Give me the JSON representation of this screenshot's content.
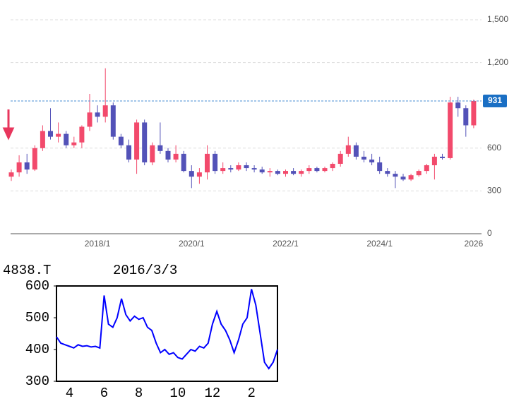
{
  "chart_data": [
    {
      "type": "candlestick",
      "categories": [
        null,
        null,
        null,
        null,
        null,
        null,
        null,
        null,
        null,
        null,
        null,
        "2018/1",
        null,
        null,
        null,
        null,
        null,
        null,
        null,
        null,
        null,
        null,
        null,
        "2020/1",
        null,
        null,
        null,
        null,
        null,
        null,
        null,
        null,
        null,
        null,
        null,
        "2022/1",
        null,
        null,
        null,
        null,
        null,
        null,
        null,
        null,
        null,
        null,
        null,
        "2024/1",
        null,
        null,
        null,
        null,
        null,
        null,
        null,
        null,
        null,
        null,
        null,
        "2026"
      ],
      "open": [
        400,
        430,
        500,
        450,
        600,
        720,
        680,
        700,
        620,
        640,
        750,
        850,
        820,
        900,
        680,
        620,
        520,
        780,
        500,
        620,
        580,
        520,
        560,
        440,
        400,
        430,
        560,
        440,
        460,
        450,
        480,
        460,
        450,
        430,
        440,
        420,
        440,
        420,
        440,
        460,
        440,
        460,
        490,
        560,
        620,
        540,
        520,
        500,
        440,
        420,
        400,
        380,
        410,
        440,
        480,
        540,
        530,
        920,
        880,
        760
      ],
      "high": [
        450,
        550,
        560,
        620,
        760,
        880,
        780,
        720,
        680,
        760,
        980,
        900,
        1160,
        920,
        700,
        660,
        800,
        800,
        640,
        780,
        600,
        620,
        580,
        480,
        460,
        620,
        580,
        500,
        480,
        500,
        500,
        480,
        470,
        460,
        450,
        450,
        460,
        450,
        480,
        470,
        470,
        500,
        580,
        680,
        640,
        580,
        560,
        540,
        460,
        440,
        420,
        420,
        450,
        490,
        560,
        560,
        960,
        960,
        900,
        940
      ],
      "low": [
        370,
        400,
        420,
        440,
        580,
        660,
        640,
        600,
        600,
        600,
        720,
        780,
        780,
        660,
        600,
        500,
        420,
        480,
        480,
        560,
        500,
        500,
        430,
        320,
        350,
        380,
        420,
        420,
        430,
        440,
        440,
        430,
        420,
        400,
        410,
        400,
        410,
        400,
        420,
        430,
        430,
        440,
        470,
        540,
        520,
        500,
        480,
        420,
        400,
        320,
        370,
        370,
        400,
        420,
        380,
        520,
        520,
        820,
        680,
        740
      ],
      "close": [
        430,
        500,
        450,
        600,
        720,
        680,
        700,
        620,
        640,
        750,
        850,
        820,
        900,
        680,
        620,
        520,
        780,
        500,
        620,
        580,
        520,
        560,
        440,
        400,
        430,
        560,
        440,
        460,
        450,
        480,
        460,
        450,
        430,
        440,
        420,
        440,
        420,
        440,
        460,
        440,
        460,
        490,
        560,
        620,
        540,
        520,
        500,
        440,
        420,
        400,
        380,
        410,
        440,
        480,
        540,
        530,
        920,
        880,
        760,
        931
      ],
      "up_color": "#f24a6c",
      "down_color": "#5352b8",
      "ylim": [
        0,
        1500
      ],
      "yticks": [
        0,
        300,
        600,
        {
          "value": 1200,
          "label": "1,200"
        },
        {
          "value": 1500,
          "label": "1,500"
        }
      ],
      "grid": true
    },
    {
      "type": "line",
      "title": "4838.T",
      "subtitle": "2016/3/3",
      "categories": [
        null,
        null,
        null,
        "4",
        null,
        null,
        null,
        null,
        null,
        null,
        null,
        "6",
        null,
        null,
        null,
        null,
        null,
        null,
        null,
        "8",
        null,
        null,
        null,
        null,
        null,
        null,
        null,
        null,
        "10",
        null,
        null,
        null,
        null,
        null,
        null,
        null,
        "12",
        null,
        null,
        null,
        null,
        null,
        null,
        null,
        null,
        "2",
        null,
        null,
        null,
        null,
        null,
        null
      ],
      "values": [
        440,
        420,
        415,
        410,
        405,
        415,
        410,
        412,
        408,
        410,
        405,
        570,
        480,
        470,
        500,
        560,
        510,
        490,
        505,
        495,
        500,
        470,
        460,
        420,
        390,
        400,
        385,
        390,
        375,
        370,
        385,
        400,
        395,
        410,
        405,
        420,
        480,
        520,
        480,
        460,
        430,
        390,
        430,
        480,
        500,
        590,
        540,
        450,
        360,
        340,
        360,
        400
      ],
      "color": "#0000ff",
      "ylim": [
        300,
        600
      ],
      "yticks": [
        300,
        400,
        500,
        600
      ]
    }
  ]
}
